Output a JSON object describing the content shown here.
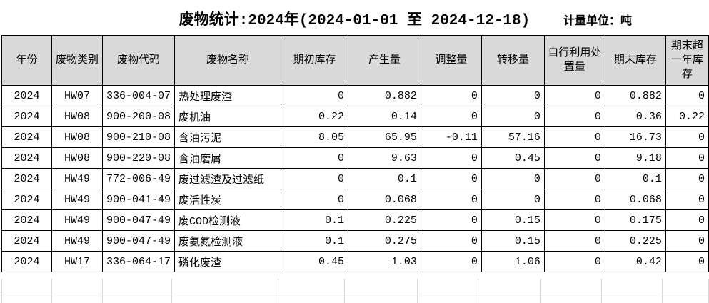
{
  "title": "废物统计:2024年(2024-01-01 至 2024-12-18)",
  "unit_label": "计量单位：吨",
  "colors": {
    "header_bg": "#d9d9d9",
    "table_border": "#000000",
    "faint_gridline": "#d8d8d8"
  },
  "table": {
    "columns": [
      "年份",
      "废物类别",
      "废物代码",
      "废物名称",
      "期初库存",
      "产生量",
      "调整量",
      "转移量",
      "自行利用处置量",
      "期末库存",
      "期末超一年库存"
    ],
    "rows": [
      [
        "2024",
        "HW07",
        "336-004-07",
        "热处理废渣",
        "0",
        "0.882",
        "0",
        "0",
        "0",
        "0.882",
        "0"
      ],
      [
        "2024",
        "HW08",
        "900-200-08",
        "废机油",
        "0.22",
        "0.14",
        "0",
        "0",
        "0",
        "0.36",
        "0.22"
      ],
      [
        "2024",
        "HW08",
        "900-210-08",
        "含油污泥",
        "8.05",
        "65.95",
        "-0.11",
        "57.16",
        "0",
        "16.73",
        "0"
      ],
      [
        "2024",
        "HW08",
        "900-220-08",
        "含油磨屑",
        "0",
        "9.63",
        "0",
        "0.45",
        "0",
        "9.18",
        "0"
      ],
      [
        "2024",
        "HW49",
        "772-006-49",
        "废过滤渣及过滤纸",
        "0",
        "0.1",
        "0",
        "0",
        "0",
        "0.1",
        "0"
      ],
      [
        "2024",
        "HW49",
        "900-041-49",
        "废活性炭",
        "0",
        "0.068",
        "0",
        "0",
        "0",
        "0.068",
        "0"
      ],
      [
        "2024",
        "HW49",
        "900-047-49",
        "废COD检测液",
        "0.1",
        "0.225",
        "0",
        "0.15",
        "0",
        "0.175",
        "0"
      ],
      [
        "2024",
        "HW49",
        "900-047-49",
        "废氨氮检测液",
        "0.1",
        "0.275",
        "0",
        "0.15",
        "0",
        "0.225",
        "0"
      ],
      [
        "2024",
        "HW17",
        "336-064-17",
        "磷化废渣",
        "0.45",
        "1.03",
        "0",
        "1.06",
        "0",
        "0.42",
        "0"
      ]
    ]
  }
}
